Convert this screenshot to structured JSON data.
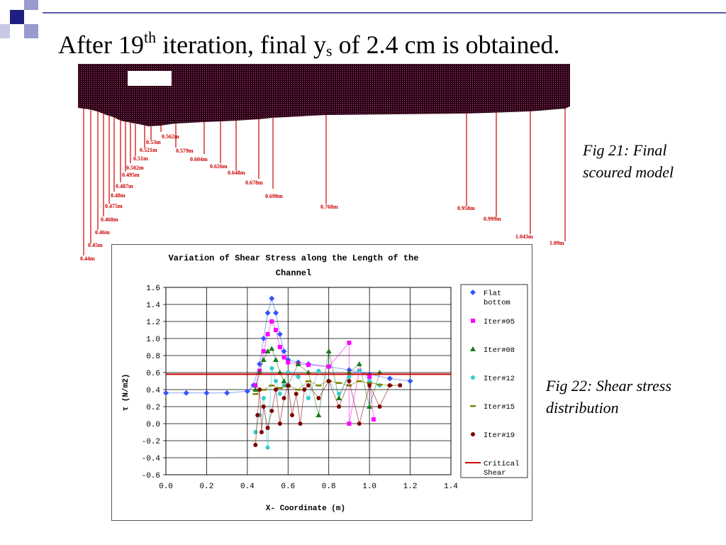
{
  "slide": {
    "title_pre": "After 19",
    "title_sup": "th",
    "title_mid": " iteration, final y",
    "title_sub": "s",
    "title_post": " of 2.4 cm is obtained.",
    "fig21_line1": "Fig 21: Final",
    "fig21_line2": "scoured model",
    "fig22_line1": "Fig 22: Shear stress",
    "fig22_line2": "distribution",
    "accent_color": "#1f1f80",
    "deco_color": "#9a9acf"
  },
  "scour_model": {
    "depth_labels": [
      "0.44m",
      "0.45m",
      "0.46m",
      "0.468m",
      "0.475m",
      "0.48m",
      "0.487m",
      "0.495m",
      "0.502m",
      "0.51m",
      "0.521m",
      "0.53m",
      "0.562m",
      "0.579m",
      "0.604m",
      "0.626m",
      "0.648m",
      "0.678m",
      "0.698m",
      "0.768m",
      "0.958m",
      "0.999m",
      "1.043m",
      "1.09m"
    ],
    "bed_color": "#2a0018",
    "marker_color": "#cc0000"
  },
  "chart_data": {
    "type": "scatter",
    "title_line1": "Variation of Shear Stress along the Length of the",
    "title_line2": "Channel",
    "xlabel": "X- Coordinate (m)",
    "ylabel": "τ (N/m2)",
    "xlim": [
      0.0,
      1.4
    ],
    "ylim": [
      -0.6,
      1.6
    ],
    "x_ticks": [
      "0.0",
      "0.2",
      "0.4",
      "0.6",
      "0.8",
      "1.0",
      "1.2",
      "1.4"
    ],
    "y_ticks": [
      "1.6",
      "1.4",
      "1.2",
      "1.0",
      "0.8",
      "0.6",
      "0.4",
      "0.2",
      "0.0",
      "-0.2",
      "-0.4",
      "-0.6"
    ],
    "grid": true,
    "legend_position": "right",
    "series": [
      {
        "name": "Flat bottom",
        "color": "#3355ff",
        "marker": "diamond",
        "x": [
          0.0,
          0.1,
          0.2,
          0.3,
          0.4,
          0.43,
          0.46,
          0.48,
          0.5,
          0.52,
          0.54,
          0.56,
          0.58,
          0.6,
          0.65,
          0.7,
          0.8,
          0.9,
          1.0,
          1.1,
          1.2
        ],
        "y": [
          0.36,
          0.36,
          0.36,
          0.36,
          0.38,
          0.45,
          0.7,
          1.0,
          1.3,
          1.47,
          1.3,
          1.05,
          0.85,
          0.75,
          0.72,
          0.7,
          0.67,
          0.63,
          0.58,
          0.53,
          0.5
        ]
      },
      {
        "name": "Iter#05",
        "color": "#ff00ff",
        "marker": "square",
        "x": [
          0.44,
          0.46,
          0.48,
          0.5,
          0.52,
          0.54,
          0.56,
          0.58,
          0.6,
          0.65,
          0.7,
          0.8,
          0.9,
          0.9,
          0.95,
          1.0,
          1.02
        ],
        "y": [
          0.45,
          0.62,
          0.85,
          1.05,
          1.2,
          1.1,
          0.9,
          0.78,
          0.72,
          0.7,
          0.69,
          0.67,
          0.95,
          0.0,
          0.62,
          0.55,
          0.05
        ]
      },
      {
        "name": "Iter#08",
        "color": "#1a7a1a",
        "marker": "triangle",
        "x": [
          0.44,
          0.46,
          0.48,
          0.5,
          0.52,
          0.54,
          0.56,
          0.58,
          0.6,
          0.65,
          0.7,
          0.75,
          0.8,
          0.85,
          0.9,
          0.95,
          1.0,
          1.05
        ],
        "y": [
          0.4,
          0.6,
          0.75,
          0.85,
          0.88,
          0.75,
          0.6,
          0.5,
          0.45,
          0.7,
          0.6,
          0.1,
          0.85,
          0.3,
          0.6,
          0.7,
          0.2,
          0.6
        ]
      },
      {
        "name": "Iter#12",
        "color": "#33cccc",
        "marker": "circle",
        "x": [
          0.44,
          0.46,
          0.48,
          0.5,
          0.52,
          0.54,
          0.56,
          0.58,
          0.6,
          0.65,
          0.7,
          0.75,
          0.8,
          0.85,
          0.9,
          0.95,
          1.0,
          1.05
        ],
        "y": [
          -0.1,
          0.1,
          0.3,
          -0.28,
          0.65,
          0.5,
          0.35,
          0.45,
          0.6,
          0.55,
          0.3,
          0.62,
          0.5,
          0.35,
          0.55,
          0.62,
          0.5,
          0.45
        ]
      },
      {
        "name": "Iter#15",
        "color": "#808000",
        "marker": "dash",
        "x": [
          0.44,
          0.48,
          0.52,
          0.56,
          0.6,
          0.65,
          0.7,
          0.75,
          0.8,
          0.85,
          0.9,
          0.95,
          1.0,
          1.05,
          1.1
        ],
        "y": [
          0.35,
          0.4,
          0.45,
          0.42,
          0.45,
          0.4,
          0.5,
          0.45,
          0.5,
          0.48,
          0.45,
          0.5,
          0.48,
          0.46,
          0.45
        ]
      },
      {
        "name": "Iter#19",
        "color": "#800000",
        "marker": "circle",
        "x": [
          0.44,
          0.45,
          0.46,
          0.47,
          0.48,
          0.5,
          0.52,
          0.54,
          0.56,
          0.58,
          0.6,
          0.62,
          0.64,
          0.66,
          0.68,
          0.7,
          0.75,
          0.8,
          0.85,
          0.9,
          0.95,
          1.0,
          1.05,
          1.1,
          1.15
        ],
        "y": [
          -0.25,
          0.1,
          0.4,
          -0.1,
          0.2,
          -0.05,
          0.15,
          0.4,
          0.0,
          0.3,
          0.45,
          0.1,
          0.35,
          0.0,
          0.4,
          0.45,
          0.3,
          0.5,
          0.2,
          0.5,
          0.0,
          0.45,
          0.2,
          0.45,
          0.45
        ]
      },
      {
        "name": "Critical Shear",
        "color": "#cc0000",
        "marker": "line",
        "x": [
          0.0,
          1.4
        ],
        "y": [
          0.58,
          0.58
        ]
      }
    ]
  }
}
